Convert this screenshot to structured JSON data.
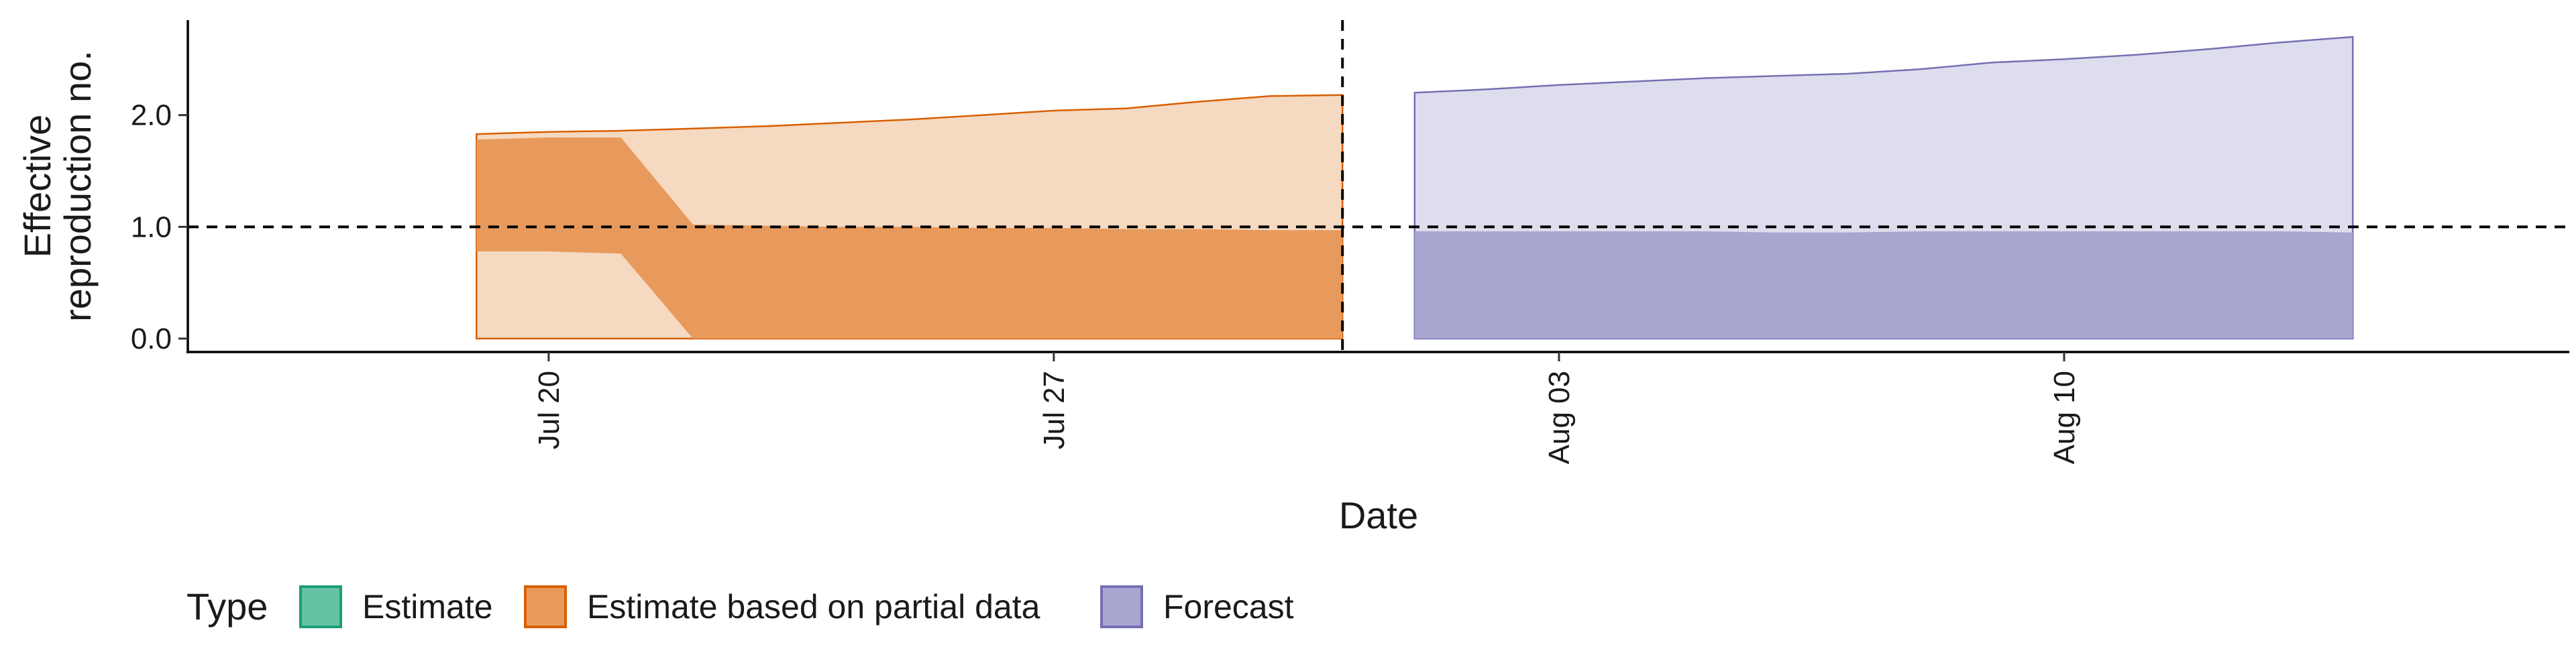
{
  "chart_data": {
    "type": "area",
    "title": "",
    "xlabel": "Date",
    "ylabel": "Effective\nreproduction no.",
    "x_axis_type": "date",
    "xlim": [
      "2020-07-15",
      "2020-08-17"
    ],
    "ylim": [
      -0.12,
      2.85
    ],
    "x_ticks": [
      {
        "date": "2020-07-20",
        "label": "Jul 20"
      },
      {
        "date": "2020-07-27",
        "label": "Jul 27"
      },
      {
        "date": "2020-08-03",
        "label": "Aug 03"
      },
      {
        "date": "2020-08-10",
        "label": "Aug 10"
      }
    ],
    "y_ticks": [
      {
        "value": 0,
        "label": "0.0"
      },
      {
        "value": 1,
        "label": "1.0"
      },
      {
        "value": 2,
        "label": "2.0"
      }
    ],
    "reference_lines": [
      {
        "orientation": "horizontal",
        "value": 1.0,
        "style": "dashed",
        "color": "#000000"
      },
      {
        "orientation": "vertical",
        "date": "2020-07-31",
        "style": "dashed",
        "color": "#000000"
      }
    ],
    "legend": {
      "title": "Type",
      "placement": "bottom",
      "entries": [
        {
          "label": "Estimate",
          "fill": "#66c2a5",
          "stroke": "#1b9e77"
        },
        {
          "label": "Estimate based on partial data",
          "fill": "#e89a5c",
          "stroke": "#d95f02"
        },
        {
          "label": "Forecast",
          "fill": "#a8a6d1",
          "stroke": "#7570b3"
        }
      ]
    },
    "series": [
      {
        "type_label": "Estimate based on partial data",
        "outer_fill": "#f5d9c1",
        "inner_fill": "#e89a5c",
        "stroke": "#d95f02",
        "points": [
          {
            "date": "2020-07-19",
            "outer_lower": 0.0,
            "outer_upper": 1.83,
            "inner_lower": 0.78,
            "inner_upper": 1.78
          },
          {
            "date": "2020-07-20",
            "outer_lower": 0.0,
            "outer_upper": 1.85,
            "inner_lower": 0.78,
            "inner_upper": 1.8
          },
          {
            "date": "2020-07-21",
            "outer_lower": 0.0,
            "outer_upper": 1.86,
            "inner_lower": 0.76,
            "inner_upper": 1.8
          },
          {
            "date": "2020-07-22",
            "outer_lower": 0.0,
            "outer_upper": 1.88,
            "inner_lower": 0.0,
            "inner_upper": 1.02
          },
          {
            "date": "2020-07-23",
            "outer_lower": 0.0,
            "outer_upper": 1.9,
            "inner_lower": 0.0,
            "inner_upper": 1.01
          },
          {
            "date": "2020-07-24",
            "outer_lower": 0.0,
            "outer_upper": 1.93,
            "inner_lower": 0.0,
            "inner_upper": 1.0
          },
          {
            "date": "2020-07-25",
            "outer_lower": 0.0,
            "outer_upper": 1.96,
            "inner_lower": 0.0,
            "inner_upper": 1.0
          },
          {
            "date": "2020-07-26",
            "outer_lower": 0.0,
            "outer_upper": 2.0,
            "inner_lower": 0.0,
            "inner_upper": 0.99
          },
          {
            "date": "2020-07-27",
            "outer_lower": 0.0,
            "outer_upper": 2.04,
            "inner_lower": 0.0,
            "inner_upper": 0.99
          },
          {
            "date": "2020-07-28",
            "outer_lower": 0.0,
            "outer_upper": 2.06,
            "inner_lower": 0.0,
            "inner_upper": 0.98
          },
          {
            "date": "2020-07-29",
            "outer_lower": 0.0,
            "outer_upper": 2.12,
            "inner_lower": 0.0,
            "inner_upper": 0.98
          },
          {
            "date": "2020-07-30",
            "outer_lower": 0.0,
            "outer_upper": 2.17,
            "inner_lower": 0.0,
            "inner_upper": 0.97
          },
          {
            "date": "2020-07-31",
            "outer_lower": 0.0,
            "outer_upper": 2.18,
            "inner_lower": 0.0,
            "inner_upper": 0.97
          }
        ]
      },
      {
        "type_label": "Forecast",
        "outer_fill": "#dedded",
        "inner_fill": "#a8a6d1",
        "stroke": "#7570b3",
        "points": [
          {
            "date": "2020-08-01",
            "outer_lower": 0.0,
            "outer_upper": 2.2,
            "inner_lower": 0.0,
            "inner_upper": 0.96
          },
          {
            "date": "2020-08-02",
            "outer_lower": 0.0,
            "outer_upper": 2.23,
            "inner_lower": 0.0,
            "inner_upper": 0.96
          },
          {
            "date": "2020-08-03",
            "outer_lower": 0.0,
            "outer_upper": 2.27,
            "inner_lower": 0.0,
            "inner_upper": 0.96
          },
          {
            "date": "2020-08-04",
            "outer_lower": 0.0,
            "outer_upper": 2.3,
            "inner_lower": 0.0,
            "inner_upper": 0.96
          },
          {
            "date": "2020-08-05",
            "outer_lower": 0.0,
            "outer_upper": 2.33,
            "inner_lower": 0.0,
            "inner_upper": 0.96
          },
          {
            "date": "2020-08-06",
            "outer_lower": 0.0,
            "outer_upper": 2.35,
            "inner_lower": 0.0,
            "inner_upper": 0.95
          },
          {
            "date": "2020-08-07",
            "outer_lower": 0.0,
            "outer_upper": 2.37,
            "inner_lower": 0.0,
            "inner_upper": 0.95
          },
          {
            "date": "2020-08-08",
            "outer_lower": 0.0,
            "outer_upper": 2.41,
            "inner_lower": 0.0,
            "inner_upper": 0.96
          },
          {
            "date": "2020-08-09",
            "outer_lower": 0.0,
            "outer_upper": 2.47,
            "inner_lower": 0.0,
            "inner_upper": 0.96
          },
          {
            "date": "2020-08-10",
            "outer_lower": 0.0,
            "outer_upper": 2.5,
            "inner_lower": 0.0,
            "inner_upper": 0.96
          },
          {
            "date": "2020-08-11",
            "outer_lower": 0.0,
            "outer_upper": 2.54,
            "inner_lower": 0.0,
            "inner_upper": 0.96
          },
          {
            "date": "2020-08-12",
            "outer_lower": 0.0,
            "outer_upper": 2.59,
            "inner_lower": 0.0,
            "inner_upper": 0.96
          },
          {
            "date": "2020-08-13",
            "outer_lower": 0.0,
            "outer_upper": 2.65,
            "inner_lower": 0.0,
            "inner_upper": 0.96
          },
          {
            "date": "2020-08-14",
            "outer_lower": 0.0,
            "outer_upper": 2.7,
            "inner_lower": 0.0,
            "inner_upper": 0.95
          }
        ]
      }
    ]
  }
}
